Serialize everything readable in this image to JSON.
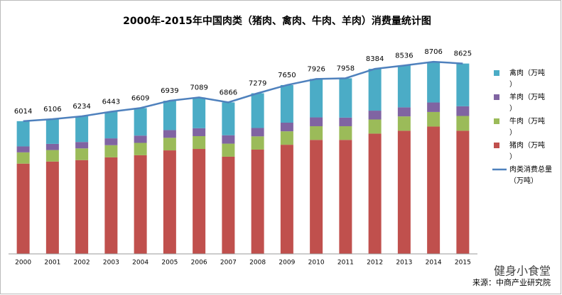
{
  "chart_data": {
    "type": "bar",
    "title": "2000年-2015年中国肉类（猪肉、禽肉、牛肉、羊肉）消费量统计图",
    "categories": [
      "2000",
      "2001",
      "2002",
      "2003",
      "2004",
      "2005",
      "2006",
      "2007",
      "2008",
      "2009",
      "2010",
      "2011",
      "2012",
      "2013",
      "2014",
      "2015"
    ],
    "series": [
      {
        "name": "猪肉（万吨）",
        "color": "#c0504d",
        "values": [
          4090,
          4185,
          4250,
          4375,
          4470,
          4690,
          4755,
          4405,
          4725,
          4945,
          5165,
          5165,
          5450,
          5580,
          5770,
          5580
        ]
      },
      {
        "name": "牛肉（万吨）",
        "color": "#9bbb59",
        "values": [
          510,
          520,
          530,
          550,
          560,
          570,
          580,
          590,
          600,
          610,
          620,
          620,
          640,
          650,
          660,
          670
        ]
      },
      {
        "name": "羊肉（万吨）",
        "color": "#8064a2",
        "values": [
          270,
          280,
          290,
          310,
          330,
          350,
          360,
          380,
          380,
          390,
          400,
          390,
          400,
          410,
          430,
          440
        ]
      },
      {
        "name": "禽肉（万吨）",
        "color": "#4bacc6",
        "values": [
          1144,
          1121,
          1164,
          1208,
          1249,
          1329,
          1394,
          1491,
          1574,
          1705,
          1741,
          1783,
          1894,
          1896,
          1846,
          1935
        ]
      }
    ],
    "line": {
      "name": "肉类消费总量（万吨）",
      "color": "#4f81bd",
      "values": [
        6014,
        6106,
        6234,
        6443,
        6609,
        6939,
        7089,
        6866,
        7279,
        7650,
        7926,
        7958,
        8384,
        8536,
        8706,
        8625
      ]
    },
    "source": "来源：中商产业研究院",
    "watermark": "健身小食堂"
  }
}
